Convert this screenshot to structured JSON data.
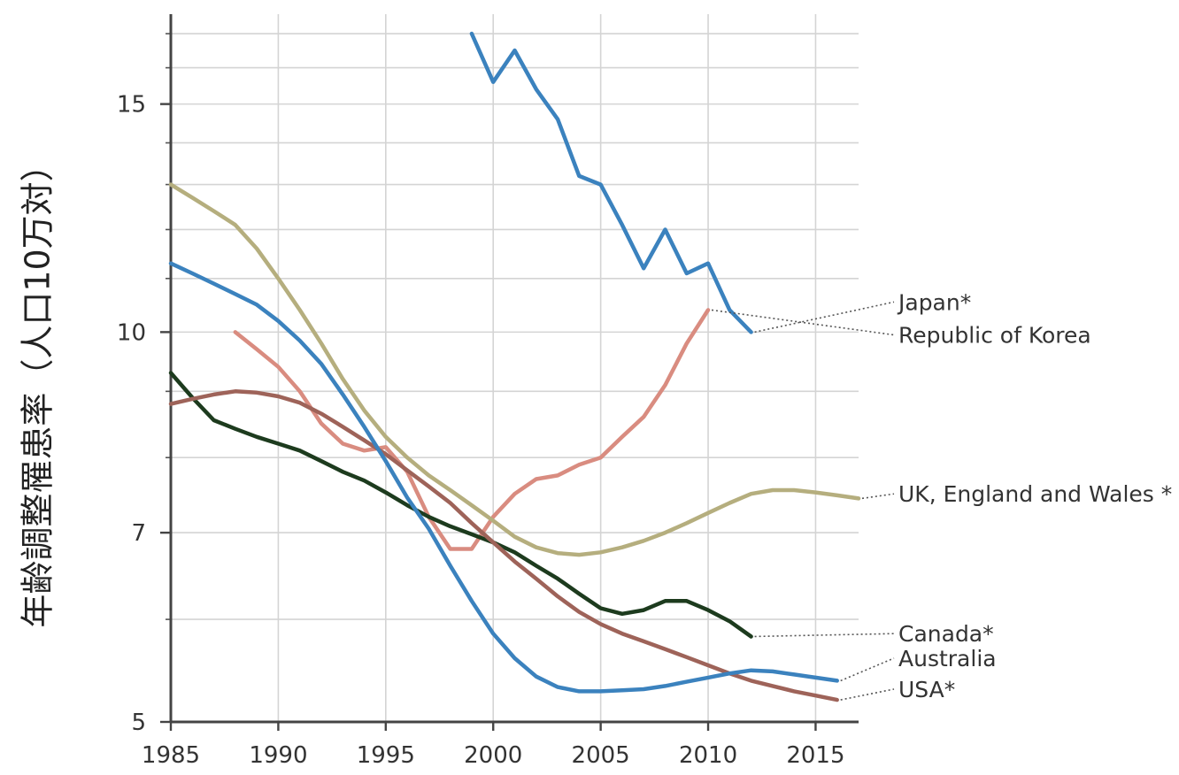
{
  "chart_data": {
    "type": "line",
    "ylabel": "年齢調整罹患率（人口10万対）",
    "xlabel": "",
    "title": "",
    "xlim": [
      1985,
      2017
    ],
    "ylim": [
      5,
      17.6
    ],
    "y_scale": "log",
    "x_ticks": [
      1985,
      1990,
      1995,
      2000,
      2005,
      2010,
      2015
    ],
    "y_ticks": [
      5,
      7,
      10,
      15
    ],
    "grid": true,
    "legend": "direct labels at right",
    "series": [
      {
        "name": "Japan*",
        "color": "#3b82be",
        "x": [
          1999,
          2000,
          2001,
          2002,
          2003,
          2004,
          2005,
          2006,
          2007,
          2008,
          2009,
          2010,
          2011,
          2012
        ],
        "y": [
          17.0,
          15.6,
          16.5,
          15.4,
          14.6,
          13.2,
          13.0,
          12.1,
          11.2,
          12.0,
          11.1,
          11.3,
          10.4,
          10.0
        ],
        "label_y": 10.55
      },
      {
        "name": "Republic of Korea",
        "color": "#d98c80",
        "x": [
          1988,
          1989,
          1990,
          1991,
          1992,
          1993,
          1994,
          1995,
          1996,
          1997,
          1998,
          1999,
          2000,
          2001,
          2002,
          2003,
          2004,
          2005,
          2006,
          2007,
          2008,
          2009,
          2010
        ],
        "y": [
          10.0,
          9.7,
          9.4,
          9.0,
          8.5,
          8.2,
          8.1,
          8.15,
          7.8,
          7.2,
          6.8,
          6.8,
          7.2,
          7.5,
          7.7,
          7.75,
          7.9,
          8.0,
          8.3,
          8.6,
          9.1,
          9.8,
          10.4
        ],
        "label_y": 9.95
      },
      {
        "name": "UK, England and Wales *",
        "color": "#b5ae7e",
        "x": [
          1985,
          1986,
          1987,
          1988,
          1989,
          1990,
          1991,
          1992,
          1993,
          1994,
          1995,
          1996,
          1997,
          1998,
          1999,
          2000,
          2001,
          2002,
          2003,
          2004,
          2005,
          2006,
          2007,
          2008,
          2009,
          2010,
          2011,
          2012,
          2013,
          2014,
          2015,
          2016,
          2017
        ],
        "y": [
          13.0,
          12.7,
          12.4,
          12.1,
          11.6,
          11.0,
          10.4,
          9.8,
          9.2,
          8.7,
          8.3,
          8.0,
          7.75,
          7.55,
          7.35,
          7.15,
          6.95,
          6.82,
          6.75,
          6.73,
          6.76,
          6.82,
          6.9,
          7.0,
          7.12,
          7.25,
          7.38,
          7.5,
          7.55,
          7.55,
          7.52,
          7.48,
          7.44
        ],
        "label_y": 7.5
      },
      {
        "name": "Canada*",
        "color": "#1d3b1e",
        "x": [
          1985,
          1986,
          1987,
          1988,
          1989,
          1990,
          1991,
          1992,
          1993,
          1994,
          1995,
          1996,
          1997,
          1998,
          1999,
          2000,
          2001,
          2002,
          2003,
          2004,
          2005,
          2006,
          2007,
          2008,
          2009,
          2010,
          2011,
          2012
        ],
        "y": [
          9.3,
          8.9,
          8.55,
          8.42,
          8.3,
          8.2,
          8.1,
          7.95,
          7.8,
          7.68,
          7.52,
          7.35,
          7.2,
          7.08,
          6.98,
          6.88,
          6.76,
          6.6,
          6.45,
          6.28,
          6.12,
          6.06,
          6.1,
          6.2,
          6.2,
          6.1,
          5.98,
          5.82
        ],
        "label_y": 5.85
      },
      {
        "name": "Australia",
        "color": "#3b82be",
        "x": [
          1985,
          1986,
          1987,
          1988,
          1989,
          1990,
          1991,
          1992,
          1993,
          1994,
          1995,
          1996,
          1997,
          1998,
          1999,
          2000,
          2001,
          2002,
          2003,
          2004,
          2005,
          2006,
          2007,
          2008,
          2009,
          2010,
          2011,
          2012,
          2013,
          2014,
          2015,
          2016
        ],
        "y": [
          11.3,
          11.1,
          10.9,
          10.7,
          10.5,
          10.2,
          9.85,
          9.45,
          8.95,
          8.45,
          7.95,
          7.45,
          7.05,
          6.6,
          6.2,
          5.85,
          5.6,
          5.42,
          5.32,
          5.28,
          5.28,
          5.29,
          5.3,
          5.33,
          5.37,
          5.41,
          5.45,
          5.48,
          5.47,
          5.44,
          5.41,
          5.38
        ],
        "label_y": 5.6
      },
      {
        "name": "USA*",
        "color": "#9e6359",
        "x": [
          1985,
          1986,
          1987,
          1988,
          1989,
          1990,
          1991,
          1992,
          1993,
          1994,
          1995,
          1996,
          1997,
          1998,
          1999,
          2000,
          2001,
          2002,
          2003,
          2004,
          2005,
          2006,
          2007,
          2008,
          2009,
          2010,
          2011,
          2012,
          2013,
          2014,
          2015,
          2016
        ],
        "y": [
          8.8,
          8.88,
          8.95,
          9.0,
          8.98,
          8.92,
          8.82,
          8.65,
          8.45,
          8.25,
          8.05,
          7.82,
          7.6,
          7.38,
          7.12,
          6.88,
          6.65,
          6.45,
          6.25,
          6.08,
          5.95,
          5.85,
          5.77,
          5.69,
          5.61,
          5.53,
          5.45,
          5.38,
          5.33,
          5.28,
          5.24,
          5.2
        ],
        "label_y": 5.3
      }
    ]
  }
}
